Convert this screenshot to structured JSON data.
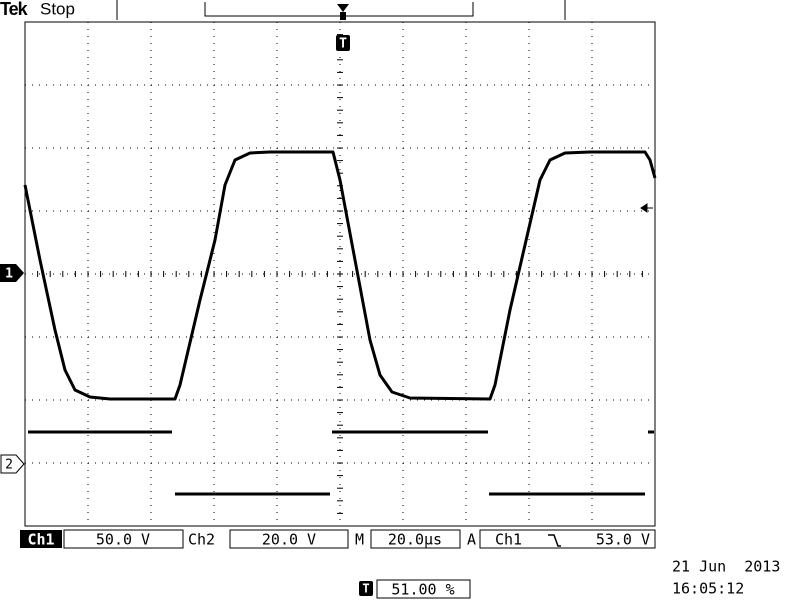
{
  "header": {
    "brand": "Tek",
    "status": "Stop"
  },
  "markers": {
    "channel1": "1",
    "channel2": "2",
    "trigger": "T"
  },
  "readout": {
    "ch1_label": "Ch1",
    "ch1_scale": "50.0 V",
    "ch2_label": "Ch2",
    "ch2_scale": "20.0 V",
    "time_label": "M",
    "time_scale": "20.0µs",
    "trigger_label": "A",
    "trigger_source": "Ch1",
    "trigger_level": "53.0 V",
    "trigger_position": "51.00 %",
    "date": "21 Jun  2013",
    "time": "16:05:12"
  }
}
